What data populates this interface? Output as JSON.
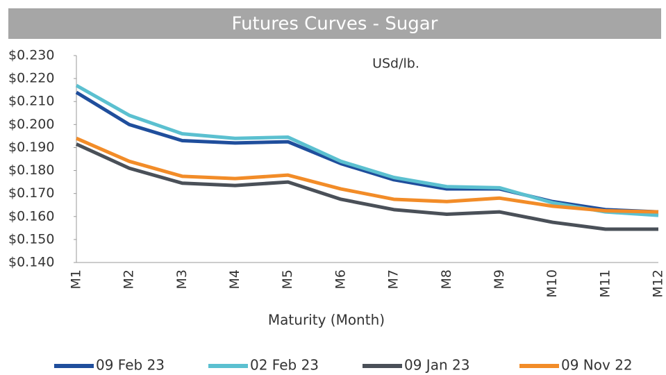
{
  "chart_data": {
    "type": "line",
    "title": "Futures Curves  - Sugar",
    "annotation": "USd/lb.",
    "x_label": "Maturity (Month)",
    "categories": [
      "M1",
      "M2",
      "M3",
      "M4",
      "M5",
      "M6",
      "M7",
      "M8",
      "M9",
      "M10",
      "M11",
      "M12"
    ],
    "ylim": [
      0.14,
      0.23
    ],
    "yticks": [
      {
        "value": 0.14,
        "label": "$0.140"
      },
      {
        "value": 0.15,
        "label": "$0.150"
      },
      {
        "value": 0.16,
        "label": "$0.160"
      },
      {
        "value": 0.17,
        "label": "$0.170"
      },
      {
        "value": 0.18,
        "label": "$0.180"
      },
      {
        "value": 0.19,
        "label": "$0.190"
      },
      {
        "value": 0.2,
        "label": "$0.200"
      },
      {
        "value": 0.21,
        "label": "$0.210"
      },
      {
        "value": 0.22,
        "label": "$0.220"
      },
      {
        "value": 0.23,
        "label": "$0.230"
      }
    ],
    "legend": "bottom",
    "series": [
      {
        "name": "09 Feb 23",
        "color": "#1f4e9c",
        "values": [
          0.214,
          0.2,
          0.193,
          0.192,
          0.1925,
          0.183,
          0.176,
          0.172,
          0.172,
          0.1665,
          0.163,
          0.162
        ]
      },
      {
        "name": "02 Feb 23",
        "color": "#5bc0d0",
        "values": [
          0.217,
          0.204,
          0.196,
          0.194,
          0.1945,
          0.184,
          0.177,
          0.173,
          0.1725,
          0.166,
          0.162,
          0.1605
        ]
      },
      {
        "name": "09 Jan 23",
        "color": "#4a5058",
        "values": [
          0.1915,
          0.181,
          0.1745,
          0.1735,
          0.175,
          0.1675,
          0.163,
          0.161,
          0.162,
          0.1575,
          0.1545,
          0.1545
        ]
      },
      {
        "name": "09 Nov 22",
        "color": "#f28c28",
        "values": [
          0.194,
          0.184,
          0.1775,
          0.1765,
          0.178,
          0.172,
          0.1675,
          0.1665,
          0.168,
          0.1645,
          0.1625,
          0.162
        ]
      }
    ]
  }
}
